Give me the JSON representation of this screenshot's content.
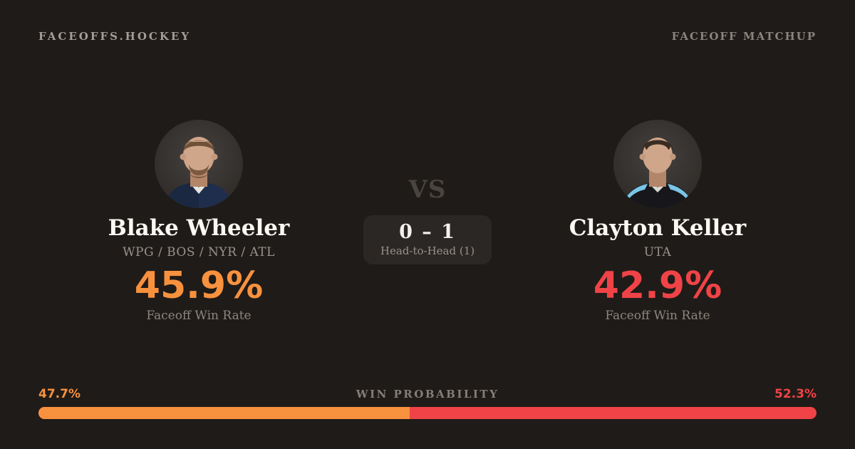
{
  "theme": {
    "background": "#1f1b18",
    "box_background": "#2b2724",
    "text_primary": "#fbf8f4",
    "text_muted": "#9a938b",
    "text_faint": "#857e77",
    "vs_color": "#4a443e"
  },
  "header": {
    "brand": "FACEOFFS.HOCKEY",
    "page_label": "FACEOFF MATCHUP"
  },
  "players": {
    "left": {
      "name": "Blake Wheeler",
      "teams": "WPG / BOS / NYR / ATL",
      "win_rate": "45.9%",
      "win_rate_label": "Faceoff Win Rate",
      "accent_color": "#f8913e"
    },
    "right": {
      "name": "Clayton Keller",
      "teams": "UTA",
      "win_rate": "42.9%",
      "win_rate_label": "Faceoff Win Rate",
      "accent_color": "#ef4347"
    }
  },
  "center": {
    "vs_label": "VS",
    "head_to_head_score": "0 – 1",
    "head_to_head_label": "Head-to-Head (1)"
  },
  "win_probability": {
    "label": "WIN PROBABILITY",
    "left_pct_label": "47.7%",
    "right_pct_label": "52.3%",
    "left_value": 47.7,
    "right_value": 52.3
  }
}
